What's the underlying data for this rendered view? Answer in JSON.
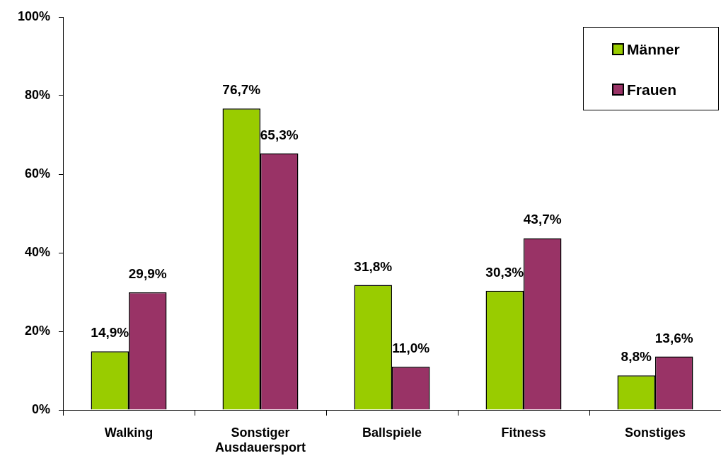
{
  "chart_data": {
    "type": "bar",
    "categories": [
      "Walking",
      "Sonstiger Ausdauersport",
      "Ballspiele",
      "Fitness",
      "Sonstiges"
    ],
    "series": [
      {
        "name": "Männer",
        "color": "#99cc00",
        "values": [
          14.9,
          76.7,
          31.8,
          30.3,
          8.8
        ],
        "value_labels": [
          "14,9%",
          "76,7%",
          "31,8%",
          "30,3%",
          "8,8%"
        ]
      },
      {
        "name": "Frauen",
        "color": "#993366",
        "values": [
          29.9,
          65.3,
          11.0,
          43.7,
          13.6
        ],
        "value_labels": [
          "29,9%",
          "65,3%",
          "11,0%",
          "43,7%",
          "13,6%"
        ]
      }
    ],
    "ylim": [
      0,
      100
    ],
    "yticks": [
      {
        "value": 0,
        "label": "0%"
      },
      {
        "value": 20,
        "label": "20%"
      },
      {
        "value": 40,
        "label": "40%"
      },
      {
        "value": 60,
        "label": "60%"
      },
      {
        "value": 80,
        "label": "80%"
      },
      {
        "value": 100,
        "label": "100%"
      }
    ],
    "legend": "top right"
  }
}
